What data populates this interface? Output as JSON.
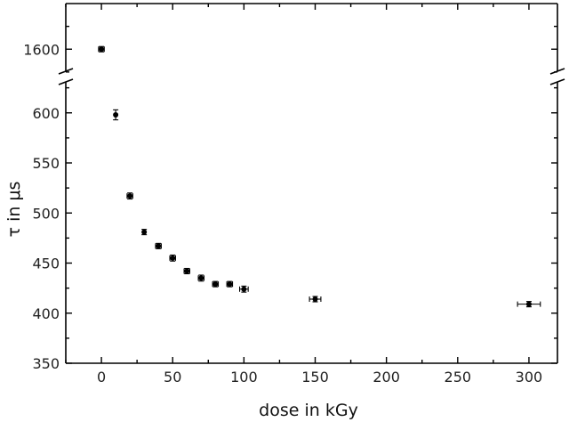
{
  "chart_data": {
    "type": "scatter",
    "xlabel": "dose in kGy",
    "ylabel": "τ in μs",
    "xlim": [
      -25,
      320
    ],
    "ylim": [
      350,
      1650
    ],
    "y_axis_break": {
      "lower_range": [
        350,
        630
      ],
      "upper_range": [
        1570,
        1650
      ]
    },
    "x_ticks": [
      "0",
      "50",
      "100",
      "150",
      "200",
      "250",
      "300"
    ],
    "y_ticks": [
      "350",
      "400",
      "450",
      "500",
      "550",
      "600",
      "1600"
    ],
    "grid": false,
    "legend": "none",
    "marker_color": "#000000",
    "series": [
      {
        "points": [
          {
            "x": 0,
            "y": 1600,
            "xerr": 2,
            "yerr": 2
          },
          {
            "x": 10,
            "y": 598,
            "xerr": 0,
            "yerr": 5
          },
          {
            "x": 20,
            "y": 517,
            "xerr": 2,
            "yerr": 3
          },
          {
            "x": 30,
            "y": 481,
            "xerr": 0,
            "yerr": 2
          },
          {
            "x": 40,
            "y": 467,
            "xerr": 2,
            "yerr": 2
          },
          {
            "x": 50,
            "y": 455,
            "xerr": 2,
            "yerr": 3
          },
          {
            "x": 60,
            "y": 442,
            "xerr": 2,
            "yerr": 2
          },
          {
            "x": 70,
            "y": 435,
            "xerr": 2,
            "yerr": 3
          },
          {
            "x": 80,
            "y": 429,
            "xerr": 2,
            "yerr": 2
          },
          {
            "x": 90,
            "y": 429,
            "xerr": 2,
            "yerr": 2
          },
          {
            "x": 100,
            "y": 424,
            "xerr": 3,
            "yerr": 3
          },
          {
            "x": 150,
            "y": 414,
            "xerr": 4,
            "yerr": 2
          },
          {
            "x": 300,
            "y": 409,
            "xerr": 8,
            "yerr": 2
          }
        ]
      }
    ]
  }
}
